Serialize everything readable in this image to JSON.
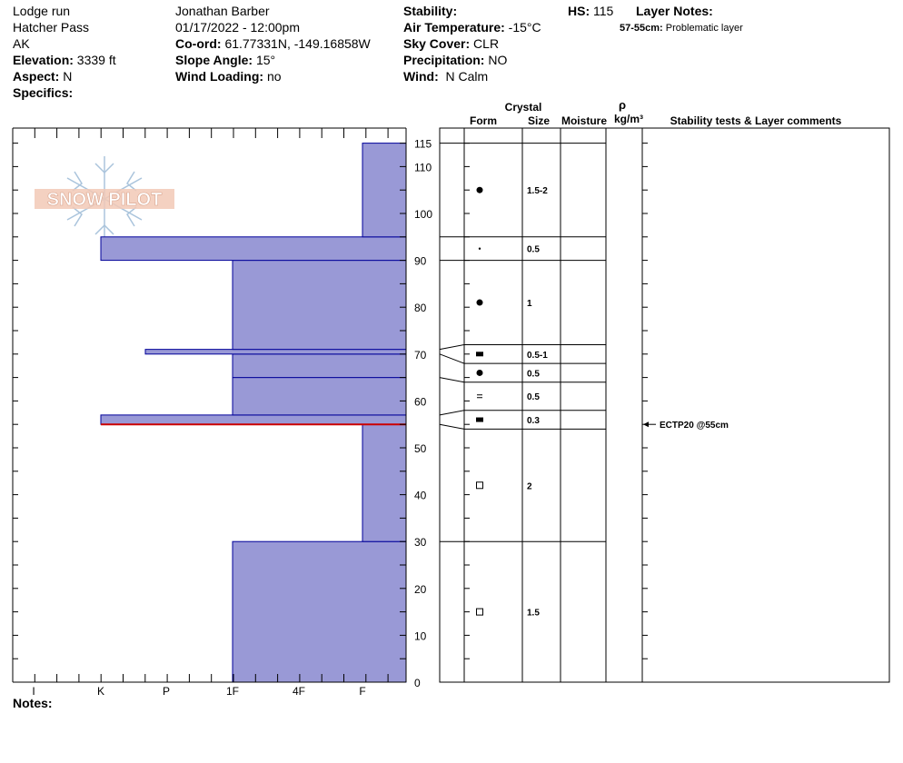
{
  "header": {
    "location": "Lodge run",
    "area": "Hatcher Pass",
    "state": "AK",
    "elevation_label": "Elevation:",
    "elevation_value": "3339 ft",
    "aspect_label": "Aspect:",
    "aspect_value": "N",
    "specifics_label": "Specifics:",
    "observer": "Jonathan Barber",
    "datetime": "01/17/2022 - 12:00pm",
    "coord_label": "Co-ord:",
    "coord_value": "61.77331N, -149.16858W",
    "slope_label": "Slope Angle:",
    "slope_value": "15°",
    "wind_loading_label": "Wind Loading:",
    "wind_loading_value": "no",
    "stability_label": "Stability:",
    "air_temp_label": "Air Temperature:",
    "air_temp_value": "-15°C",
    "sky_label": "Sky Cover:",
    "sky_value": "CLR",
    "precip_label": "Precipitation:",
    "precip_value": "NO",
    "wind_label": "Wind:",
    "wind_value": "N Calm",
    "hs_label": "HS:",
    "hs_value": "115",
    "layer_notes_label": "Layer Notes:",
    "layer_note_range": "57-55cm:",
    "layer_note_text": "Problematic layer",
    "notes_label": "Notes:"
  },
  "logo": {
    "text": "SNOW PILOT"
  },
  "columns": {
    "crystal": "Crystal",
    "form": "Form",
    "size": "Size",
    "moisture": "Moisture",
    "rho": "ρ",
    "density_unit": "kg/m³",
    "stability": "Stability tests & Layer comments"
  },
  "colors": {
    "layer_fill": "#9999d6",
    "layer_stroke": "#000099",
    "problem_line": "#cc0000"
  },
  "chart_data": {
    "type": "snow_profile",
    "height_axis": {
      "min": 0,
      "max": 115,
      "ticks": [
        0,
        10,
        20,
        30,
        40,
        50,
        60,
        70,
        80,
        90,
        100,
        110,
        115
      ],
      "unit": "cm"
    },
    "hardness_axis": {
      "ticks": [
        "I",
        "K",
        "P",
        "1F",
        "4F",
        "F"
      ]
    },
    "hardness_layers": [
      {
        "bottom": 0,
        "top": 30,
        "hardness": "1F"
      },
      {
        "bottom": 30,
        "top": 55,
        "hardness": "F"
      },
      {
        "bottom": 55,
        "top": 57,
        "hardness": "K"
      },
      {
        "bottom": 57,
        "top": 65,
        "hardness": "1F"
      },
      {
        "bottom": 65,
        "top": 70,
        "hardness": "1F"
      },
      {
        "bottom": 70,
        "top": 71,
        "hardness": "K-P"
      },
      {
        "bottom": 71,
        "top": 90,
        "hardness": "1F"
      },
      {
        "bottom": 90,
        "top": 95,
        "hardness": "K"
      },
      {
        "bottom": 95,
        "top": 115,
        "hardness": "F"
      }
    ],
    "problem_layer_height": 55,
    "layers": [
      {
        "bottom": 0,
        "top": 30,
        "form": "square",
        "size": "1.5"
      },
      {
        "bottom": 30,
        "top": 54,
        "form": "square",
        "size": "2"
      },
      {
        "bottom": 54,
        "top": 58,
        "form": "rect",
        "size": "0.3"
      },
      {
        "bottom": 58,
        "top": 64,
        "form": "equal",
        "size": "0.5"
      },
      {
        "bottom": 64,
        "top": 68,
        "form": "dot",
        "size": "0.5"
      },
      {
        "bottom": 68,
        "top": 72,
        "form": "rect",
        "size": "0.5-1"
      },
      {
        "bottom": 72,
        "top": 90,
        "form": "dot",
        "size": "1"
      },
      {
        "bottom": 90,
        "top": 95,
        "form": "small-dot",
        "size": "0.5"
      },
      {
        "bottom": 95,
        "top": 115,
        "form": "dot",
        "size": "1.5-2"
      }
    ],
    "stability_tests": [
      {
        "height": 55,
        "text": "ECTP20 @55cm"
      }
    ]
  }
}
